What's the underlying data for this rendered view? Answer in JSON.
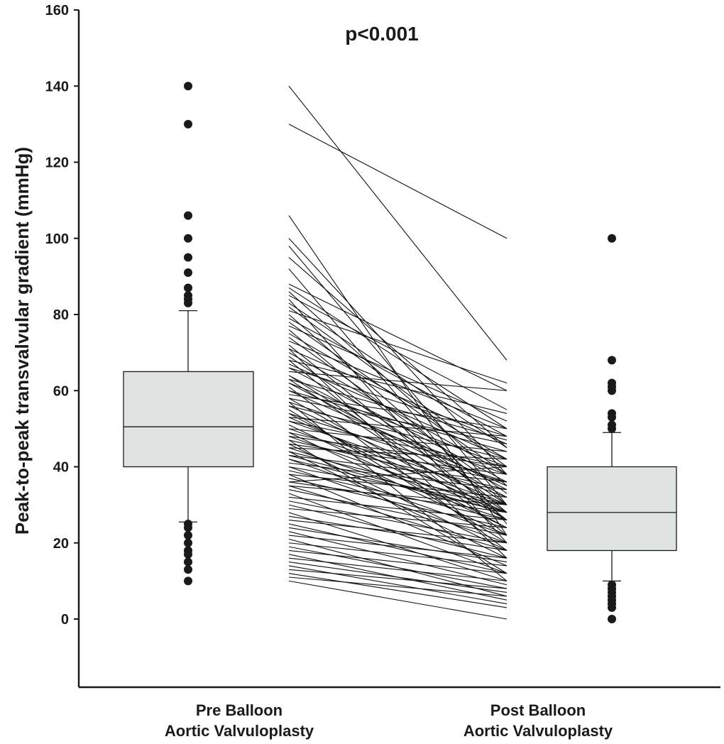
{
  "chart_data": {
    "type": "box",
    "title": "",
    "ylabel": "Peak-to-peak transvalvular gradient (mmHg)",
    "xlabel": "",
    "ylim": [
      -18,
      160
    ],
    "yticks": [
      0,
      20,
      40,
      60,
      80,
      100,
      120,
      140,
      160
    ],
    "annotation": "p<0.001",
    "colors": {
      "box_fill": "#dfe3e2",
      "stroke": "#1a1a1a",
      "outlier": "#1a1a1a"
    },
    "groups": [
      {
        "line1": "Pre Balloon",
        "line2": "Aortic Valvuloplasty",
        "q1": 40,
        "median": 50.5,
        "q3": 65,
        "whisker_low": 25.5,
        "whisker_high": 81,
        "outliers": [
          10,
          13,
          15,
          17,
          18,
          20,
          22,
          24,
          25,
          83,
          84,
          85,
          87,
          91,
          95,
          100,
          106,
          130,
          140
        ]
      },
      {
        "line1": "Post Balloon",
        "line2": "Aortic Valvuloplasty",
        "q1": 18,
        "median": 28,
        "q3": 40,
        "whisker_low": 10,
        "whisker_high": 49,
        "outliers": [
          0,
          3,
          4,
          5,
          6,
          7,
          8,
          9,
          50,
          51,
          53,
          54,
          60,
          61,
          62,
          68,
          100
        ]
      }
    ],
    "paired_lines": [
      [
        140,
        68
      ],
      [
        130,
        100
      ],
      [
        106,
        22
      ],
      [
        100,
        38
      ],
      [
        98,
        30
      ],
      [
        95,
        45
      ],
      [
        92,
        25
      ],
      [
        88,
        60
      ],
      [
        87,
        50
      ],
      [
        86,
        35
      ],
      [
        85,
        55
      ],
      [
        84,
        20
      ],
      [
        83,
        45
      ],
      [
        82,
        40
      ],
      [
        81,
        62
      ],
      [
        80,
        30
      ],
      [
        79,
        48
      ],
      [
        78,
        38
      ],
      [
        77,
        52
      ],
      [
        76,
        28
      ],
      [
        75,
        42
      ],
      [
        74,
        33
      ],
      [
        73,
        50
      ],
      [
        72,
        26
      ],
      [
        71,
        46
      ],
      [
        70,
        38
      ],
      [
        69,
        30
      ],
      [
        68,
        54
      ],
      [
        68,
        22
      ],
      [
        67,
        42
      ],
      [
        66,
        36
      ],
      [
        65,
        60
      ],
      [
        64,
        28
      ],
      [
        63,
        47
      ],
      [
        62,
        32
      ],
      [
        62,
        40
      ],
      [
        61,
        18
      ],
      [
        60,
        44
      ],
      [
        60,
        35
      ],
      [
        59,
        50
      ],
      [
        58,
        26
      ],
      [
        57,
        38
      ],
      [
        56,
        30
      ],
      [
        56,
        42
      ],
      [
        55,
        20
      ],
      [
        54,
        36
      ],
      [
        53,
        48
      ],
      [
        53,
        28
      ],
      [
        52,
        40
      ],
      [
        52,
        32
      ],
      [
        51,
        24
      ],
      [
        50,
        44
      ],
      [
        50,
        30
      ],
      [
        49,
        36
      ],
      [
        49,
        22
      ],
      [
        48,
        40
      ],
      [
        48,
        28
      ],
      [
        47,
        34
      ],
      [
        46,
        18
      ],
      [
        46,
        38
      ],
      [
        45,
        26
      ],
      [
        45,
        42
      ],
      [
        44,
        30
      ],
      [
        44,
        16
      ],
      [
        43,
        36
      ],
      [
        42,
        28
      ],
      [
        42,
        22
      ],
      [
        41,
        34
      ],
      [
        40,
        20
      ],
      [
        40,
        30
      ],
      [
        39,
        26
      ],
      [
        38,
        32
      ],
      [
        38,
        14
      ],
      [
        37,
        24
      ],
      [
        36,
        28
      ],
      [
        35,
        18
      ],
      [
        35,
        30
      ],
      [
        34,
        22
      ],
      [
        33,
        12
      ],
      [
        32,
        26
      ],
      [
        31,
        20
      ],
      [
        30,
        16
      ],
      [
        29,
        24
      ],
      [
        28,
        10
      ],
      [
        27,
        18
      ],
      [
        26,
        20
      ],
      [
        25,
        12
      ],
      [
        24,
        15
      ],
      [
        23,
        9
      ],
      [
        22,
        16
      ],
      [
        21,
        6
      ],
      [
        20,
        14
      ],
      [
        19,
        8
      ],
      [
        18,
        12
      ],
      [
        17,
        5
      ],
      [
        16,
        10
      ],
      [
        15,
        7
      ],
      [
        14,
        4
      ],
      [
        13,
        8
      ],
      [
        12,
        3
      ],
      [
        11,
        6
      ],
      [
        10,
        0
      ],
      [
        66,
        48
      ],
      [
        57,
        10
      ],
      [
        64,
        34
      ],
      [
        58,
        46
      ],
      [
        54,
        24
      ],
      [
        47,
        12
      ],
      [
        43,
        28
      ],
      [
        36,
        40
      ],
      [
        71,
        16
      ],
      [
        63,
        26
      ]
    ]
  }
}
